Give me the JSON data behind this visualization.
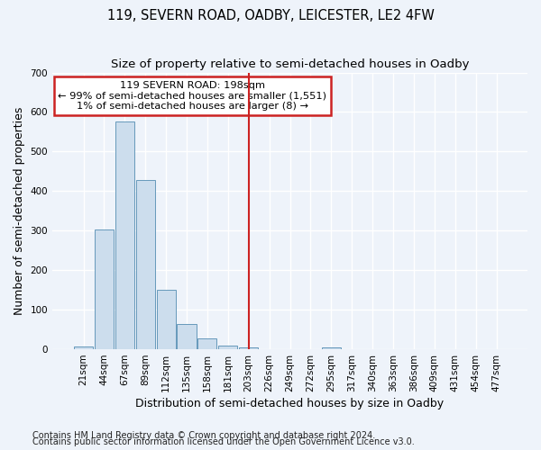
{
  "title": "119, SEVERN ROAD, OADBY, LEICESTER, LE2 4FW",
  "subtitle": "Size of property relative to semi-detached houses in Oadby",
  "xlabel": "Distribution of semi-detached houses by size in Oadby",
  "ylabel": "Number of semi-detached properties",
  "bar_color": "#ccdded",
  "bar_edge_color": "#6699bb",
  "categories": [
    "21sqm",
    "44sqm",
    "67sqm",
    "89sqm",
    "112sqm",
    "135sqm",
    "158sqm",
    "181sqm",
    "203sqm",
    "226sqm",
    "249sqm",
    "272sqm",
    "295sqm",
    "317sqm",
    "340sqm",
    "363sqm",
    "386sqm",
    "409sqm",
    "431sqm",
    "454sqm",
    "477sqm"
  ],
  "values": [
    8,
    303,
    575,
    428,
    150,
    65,
    28,
    10,
    5,
    0,
    0,
    0,
    5,
    0,
    0,
    0,
    0,
    0,
    0,
    0,
    0
  ],
  "vline_color": "#cc2222",
  "annotation_line1": "119 SEVERN ROAD: 198sqm",
  "annotation_line2": "← 99% of semi-detached houses are smaller (1,551)",
  "annotation_line3": "1% of semi-detached houses are larger (8) →",
  "annotation_box_color": "#ffffff",
  "annotation_box_edge": "#cc2222",
  "ylim": [
    0,
    700
  ],
  "yticks": [
    0,
    100,
    200,
    300,
    400,
    500,
    600,
    700
  ],
  "footnote1": "Contains HM Land Registry data © Crown copyright and database right 2024.",
  "footnote2": "Contains public sector information licensed under the Open Government Licence v3.0.",
  "bg_color": "#eef3fa",
  "plot_bg_color": "#eef3fa",
  "grid_color": "#ffffff",
  "title_fontsize": 10.5,
  "subtitle_fontsize": 9.5,
  "label_fontsize": 9,
  "tick_fontsize": 7.5,
  "footnote_fontsize": 7
}
